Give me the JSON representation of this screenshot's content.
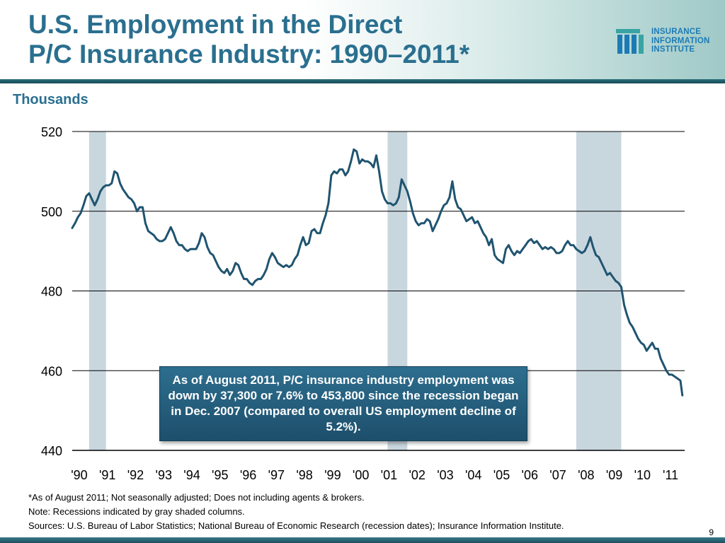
{
  "slide": {
    "title_line1": "U.S. Employment in the Direct",
    "title_line2": "P/C Insurance Industry: 1990–2011*",
    "logo": {
      "line1": "INSURANCE",
      "line2": "INFORMATION",
      "line3": "INSTITUTE"
    },
    "unit_label": "Thousands",
    "callout": "As of August 2011, P/C insurance industry employment was down by 37,300 or 7.6% to 453,800 since the recession began in Dec. 2007 (compared to overall US employment decline of 5.2%).",
    "notes": [
      "*As of August 2011; Not seasonally adjusted; Does not including agents & brokers.",
      "Note: Recessions indicated by gray shaded columns.",
      "Sources: U.S. Bureau of Labor Statistics;  National Bureau of Economic Research (recession dates); Insurance Information Institute."
    ],
    "page_number": "9"
  },
  "colors": {
    "title": "#2a6f8f",
    "series": "#1f5470",
    "recession": "#c8d6de",
    "callout_bg": "#1f5270"
  },
  "chart_data": {
    "type": "line",
    "title": "",
    "xlabel": "",
    "ylabel": "Thousands",
    "ylim": [
      440,
      520
    ],
    "yticks": [
      440,
      460,
      480,
      500,
      520
    ],
    "xlim": [
      1990.0,
      2011.75
    ],
    "categories": [
      "'90",
      "'91",
      "'92",
      "'93",
      "'94",
      "'95",
      "'96",
      "'97",
      "'98",
      "'99",
      "'00",
      "'01",
      "'02",
      "'03",
      "'04",
      "'05",
      "'06",
      "'07",
      "'08",
      "'09",
      "'10",
      "'11"
    ],
    "grid": "horizontal",
    "recessions": [
      [
        1990.6,
        1991.2
      ],
      [
        2001.2,
        2001.9
      ],
      [
        2007.9,
        2009.5
      ]
    ],
    "series": [
      {
        "points": [
          [
            1990.0,
            495.8
          ],
          [
            1990.1,
            497.0
          ],
          [
            1990.2,
            498.5
          ],
          [
            1990.3,
            499.5
          ],
          [
            1990.4,
            501.5
          ],
          [
            1990.5,
            503.8
          ],
          [
            1990.6,
            504.5
          ],
          [
            1990.7,
            503.0
          ],
          [
            1990.8,
            501.5
          ],
          [
            1990.9,
            503.0
          ],
          [
            1991.0,
            505.0
          ],
          [
            1991.1,
            506.0
          ],
          [
            1991.2,
            506.5
          ],
          [
            1991.3,
            506.5
          ],
          [
            1991.4,
            507.0
          ],
          [
            1991.5,
            510.0
          ],
          [
            1991.6,
            509.5
          ],
          [
            1991.7,
            507.0
          ],
          [
            1991.8,
            505.5
          ],
          [
            1991.9,
            504.5
          ],
          [
            1992.0,
            503.5
          ],
          [
            1992.1,
            503.0
          ],
          [
            1992.2,
            502.0
          ],
          [
            1992.3,
            500.0
          ],
          [
            1992.4,
            501.0
          ],
          [
            1992.5,
            501.0
          ],
          [
            1992.6,
            497.0
          ],
          [
            1992.7,
            495.0
          ],
          [
            1992.8,
            494.5
          ],
          [
            1992.9,
            494.0
          ],
          [
            1993.0,
            493.0
          ],
          [
            1993.1,
            492.5
          ],
          [
            1993.2,
            492.5
          ],
          [
            1993.3,
            493.0
          ],
          [
            1993.4,
            494.5
          ],
          [
            1993.5,
            496.0
          ],
          [
            1993.6,
            494.5
          ],
          [
            1993.7,
            492.5
          ],
          [
            1993.8,
            491.5
          ],
          [
            1993.9,
            491.5
          ],
          [
            1994.0,
            490.5
          ],
          [
            1994.1,
            490.0
          ],
          [
            1994.2,
            490.5
          ],
          [
            1994.3,
            490.5
          ],
          [
            1994.4,
            490.5
          ],
          [
            1994.5,
            492.0
          ],
          [
            1994.6,
            494.5
          ],
          [
            1994.7,
            493.5
          ],
          [
            1994.8,
            491.0
          ],
          [
            1994.9,
            489.5
          ],
          [
            1995.0,
            489.0
          ],
          [
            1995.1,
            487.5
          ],
          [
            1995.2,
            486.0
          ],
          [
            1995.3,
            485.0
          ],
          [
            1995.4,
            484.5
          ],
          [
            1995.5,
            485.5
          ],
          [
            1995.6,
            484.0
          ],
          [
            1995.7,
            485.0
          ],
          [
            1995.8,
            487.0
          ],
          [
            1995.9,
            486.5
          ],
          [
            1996.0,
            484.5
          ],
          [
            1996.1,
            483.0
          ],
          [
            1996.2,
            483.0
          ],
          [
            1996.3,
            482.0
          ],
          [
            1996.4,
            481.5
          ],
          [
            1996.5,
            482.5
          ],
          [
            1996.6,
            483.0
          ],
          [
            1996.7,
            483.0
          ],
          [
            1996.8,
            484.0
          ],
          [
            1996.9,
            485.5
          ],
          [
            1997.0,
            488.0
          ],
          [
            1997.1,
            489.5
          ],
          [
            1997.2,
            488.5
          ],
          [
            1997.3,
            487.0
          ],
          [
            1997.4,
            486.5
          ],
          [
            1997.5,
            486.0
          ],
          [
            1997.6,
            486.5
          ],
          [
            1997.7,
            486.0
          ],
          [
            1997.8,
            486.5
          ],
          [
            1997.9,
            488.0
          ],
          [
            1998.0,
            489.0
          ],
          [
            1998.1,
            491.5
          ],
          [
            1998.2,
            493.5
          ],
          [
            1998.3,
            491.5
          ],
          [
            1998.4,
            492.0
          ],
          [
            1998.5,
            495.0
          ],
          [
            1998.6,
            495.5
          ],
          [
            1998.7,
            494.5
          ],
          [
            1998.8,
            494.5
          ],
          [
            1998.9,
            497.0
          ],
          [
            1999.0,
            499.0
          ],
          [
            1999.1,
            502.0
          ],
          [
            1999.2,
            509.0
          ],
          [
            1999.3,
            510.0
          ],
          [
            1999.4,
            509.5
          ],
          [
            1999.5,
            510.5
          ],
          [
            1999.6,
            510.5
          ],
          [
            1999.7,
            509.0
          ],
          [
            1999.8,
            510.0
          ],
          [
            1999.9,
            512.5
          ],
          [
            2000.0,
            515.5
          ],
          [
            2000.1,
            515.0
          ],
          [
            2000.2,
            512.0
          ],
          [
            2000.3,
            513.0
          ],
          [
            2000.4,
            512.5
          ],
          [
            2000.5,
            512.5
          ],
          [
            2000.6,
            512.0
          ],
          [
            2000.7,
            511.0
          ],
          [
            2000.8,
            514.0
          ],
          [
            2000.9,
            510.0
          ],
          [
            2001.0,
            505.0
          ],
          [
            2001.1,
            503.0
          ],
          [
            2001.2,
            502.0
          ],
          [
            2001.3,
            502.0
          ],
          [
            2001.4,
            501.5
          ],
          [
            2001.5,
            502.0
          ],
          [
            2001.6,
            503.5
          ],
          [
            2001.7,
            508.0
          ],
          [
            2001.8,
            506.5
          ],
          [
            2001.9,
            505.0
          ],
          [
            2002.0,
            502.5
          ],
          [
            2002.1,
            499.5
          ],
          [
            2002.2,
            497.5
          ],
          [
            2002.3,
            496.5
          ],
          [
            2002.4,
            497.0
          ],
          [
            2002.5,
            497.0
          ],
          [
            2002.6,
            498.0
          ],
          [
            2002.7,
            497.5
          ],
          [
            2002.8,
            495.0
          ],
          [
            2002.9,
            496.5
          ],
          [
            2003.0,
            498.0
          ],
          [
            2003.1,
            500.0
          ],
          [
            2003.2,
            501.5
          ],
          [
            2003.3,
            502.0
          ],
          [
            2003.4,
            503.5
          ],
          [
            2003.5,
            507.5
          ],
          [
            2003.6,
            503.0
          ],
          [
            2003.7,
            501.0
          ],
          [
            2003.8,
            500.5
          ],
          [
            2003.9,
            499.0
          ],
          [
            2004.0,
            497.5
          ],
          [
            2004.1,
            498.0
          ],
          [
            2004.2,
            498.5
          ],
          [
            2004.3,
            497.0
          ],
          [
            2004.4,
            497.5
          ],
          [
            2004.5,
            496.0
          ],
          [
            2004.6,
            494.5
          ],
          [
            2004.7,
            493.5
          ],
          [
            2004.8,
            491.5
          ],
          [
            2004.9,
            493.0
          ],
          [
            2005.0,
            489.0
          ],
          [
            2005.1,
            488.0
          ],
          [
            2005.2,
            487.5
          ],
          [
            2005.3,
            487.0
          ],
          [
            2005.4,
            490.5
          ],
          [
            2005.5,
            491.5
          ],
          [
            2005.6,
            490.0
          ],
          [
            2005.7,
            489.0
          ],
          [
            2005.8,
            490.0
          ],
          [
            2005.9,
            489.5
          ],
          [
            2006.0,
            490.5
          ],
          [
            2006.1,
            491.5
          ],
          [
            2006.2,
            492.5
          ],
          [
            2006.3,
            493.0
          ],
          [
            2006.4,
            492.0
          ],
          [
            2006.5,
            492.5
          ],
          [
            2006.6,
            491.5
          ],
          [
            2006.7,
            490.5
          ],
          [
            2006.8,
            491.0
          ],
          [
            2006.9,
            490.5
          ],
          [
            2007.0,
            491.0
          ],
          [
            2007.1,
            490.5
          ],
          [
            2007.2,
            489.5
          ],
          [
            2007.3,
            489.5
          ],
          [
            2007.4,
            490.0
          ],
          [
            2007.5,
            491.5
          ],
          [
            2007.6,
            492.5
          ],
          [
            2007.7,
            491.5
          ],
          [
            2007.8,
            491.5
          ],
          [
            2007.9,
            490.5
          ],
          [
            2008.0,
            490.0
          ],
          [
            2008.1,
            489.5
          ],
          [
            2008.2,
            490.0
          ],
          [
            2008.3,
            491.5
          ],
          [
            2008.4,
            493.5
          ],
          [
            2008.5,
            491.0
          ],
          [
            2008.6,
            489.0
          ],
          [
            2008.7,
            488.5
          ],
          [
            2008.8,
            487.0
          ],
          [
            2008.9,
            485.5
          ],
          [
            2009.0,
            484.0
          ],
          [
            2009.1,
            484.5
          ],
          [
            2009.2,
            483.5
          ],
          [
            2009.3,
            482.5
          ],
          [
            2009.4,
            482.0
          ],
          [
            2009.5,
            481.0
          ],
          [
            2009.6,
            476.5
          ],
          [
            2009.7,
            474.0
          ],
          [
            2009.8,
            472.0
          ],
          [
            2009.9,
            471.0
          ],
          [
            2010.0,
            469.5
          ],
          [
            2010.1,
            468.0
          ],
          [
            2010.2,
            467.0
          ],
          [
            2010.3,
            466.5
          ],
          [
            2010.4,
            465.0
          ],
          [
            2010.5,
            466.0
          ],
          [
            2010.6,
            467.0
          ],
          [
            2010.7,
            465.5
          ],
          [
            2010.8,
            465.5
          ],
          [
            2010.9,
            463.0
          ],
          [
            2011.0,
            461.5
          ],
          [
            2011.1,
            460.0
          ],
          [
            2011.2,
            459.0
          ],
          [
            2011.3,
            459.0
          ],
          [
            2011.4,
            458.5
          ],
          [
            2011.5,
            458.0
          ],
          [
            2011.6,
            457.5
          ],
          [
            2011.67,
            453.8
          ]
        ]
      }
    ]
  }
}
